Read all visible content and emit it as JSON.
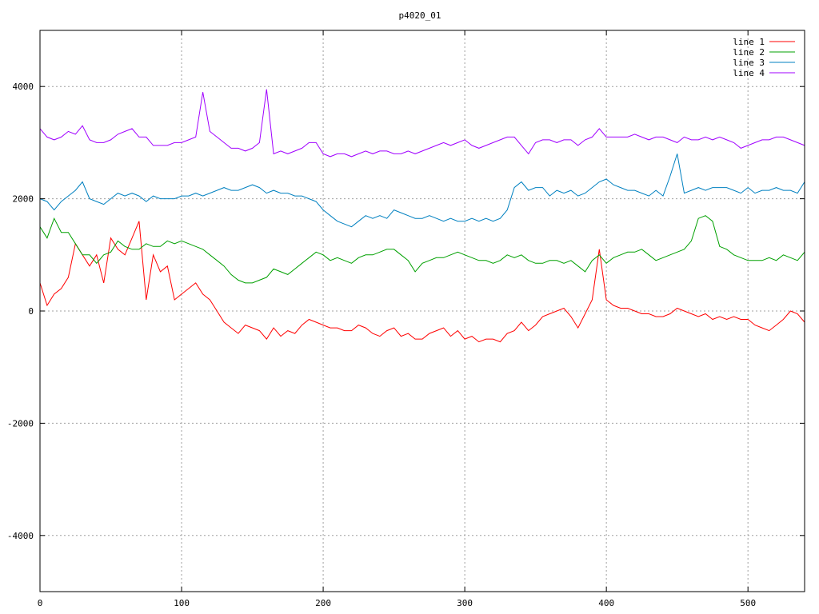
{
  "chart_data": {
    "type": "line",
    "title": "p4020_01",
    "xlabel": "",
    "ylabel": "",
    "xlim": [
      0,
      540
    ],
    "ylim": [
      -5000,
      5000
    ],
    "grid": true,
    "legend_position": "top-right",
    "x_ticks": [
      0,
      100,
      200,
      300,
      400,
      500
    ],
    "y_ticks": [
      -4000,
      -2000,
      0,
      2000,
      4000
    ],
    "x_tick_labels": [
      "0",
      "100",
      "200",
      "300",
      "400",
      "500"
    ],
    "y_tick_labels": [
      "-4000",
      "-2000",
      "0",
      "2000",
      "4000"
    ],
    "x": [
      0,
      5,
      10,
      15,
      20,
      25,
      30,
      35,
      40,
      45,
      50,
      55,
      60,
      65,
      70,
      75,
      80,
      85,
      90,
      95,
      100,
      105,
      110,
      115,
      120,
      125,
      130,
      135,
      140,
      145,
      150,
      155,
      160,
      165,
      170,
      175,
      180,
      185,
      190,
      195,
      200,
      205,
      210,
      215,
      220,
      225,
      230,
      235,
      240,
      245,
      250,
      255,
      260,
      265,
      270,
      275,
      280,
      285,
      290,
      295,
      300,
      305,
      310,
      315,
      320,
      325,
      330,
      335,
      340,
      345,
      350,
      355,
      360,
      365,
      370,
      375,
      380,
      385,
      390,
      395,
      400,
      405,
      410,
      415,
      420,
      425,
      430,
      435,
      440,
      445,
      450,
      455,
      460,
      465,
      470,
      475,
      480,
      485,
      490,
      495,
      500,
      505,
      510,
      515,
      520,
      525,
      530,
      535,
      540
    ],
    "series": [
      {
        "name": "line 1",
        "color": "#ff0000",
        "values": [
          500,
          100,
          300,
          400,
          600,
          1200,
          1000,
          800,
          1000,
          500,
          1300,
          1100,
          1000,
          1300,
          1600,
          200,
          1000,
          700,
          800,
          200,
          300,
          400,
          500,
          300,
          200,
          0,
          -200,
          -300,
          -400,
          -250,
          -300,
          -350,
          -500,
          -300,
          -450,
          -350,
          -400,
          -250,
          -150,
          -200,
          -250,
          -300,
          -300,
          -350,
          -350,
          -250,
          -300,
          -400,
          -450,
          -350,
          -300,
          -450,
          -400,
          -500,
          -500,
          -400,
          -350,
          -300,
          -450,
          -350,
          -500,
          -450,
          -550,
          -500,
          -500,
          -550,
          -400,
          -350,
          -200,
          -350,
          -250,
          -100,
          -50,
          0,
          50,
          -100,
          -300,
          -50,
          200,
          1100,
          200,
          100,
          50,
          50,
          0,
          -50,
          -50,
          -100,
          -100,
          -50,
          50,
          0,
          -50,
          -100,
          -50,
          -150,
          -100,
          -150,
          -100,
          -150,
          -150,
          -250,
          -300,
          -350,
          -250,
          -150,
          0,
          -50,
          -200
        ],
        "labels": []
      },
      {
        "name": "line 2",
        "color": "#00a000",
        "values": [
          1500,
          1300,
          1650,
          1400,
          1400,
          1200,
          1000,
          1000,
          850,
          1000,
          1050,
          1250,
          1150,
          1100,
          1100,
          1200,
          1150,
          1150,
          1250,
          1200,
          1250,
          1200,
          1150,
          1100,
          1000,
          900,
          800,
          650,
          550,
          500,
          500,
          550,
          600,
          750,
          700,
          650,
          750,
          850,
          950,
          1050,
          1000,
          900,
          950,
          900,
          850,
          950,
          1000,
          1000,
          1050,
          1100,
          1100,
          1000,
          900,
          700,
          850,
          900,
          950,
          950,
          1000,
          1050,
          1000,
          950,
          900,
          900,
          850,
          900,
          1000,
          950,
          1000,
          900,
          850,
          850,
          900,
          900,
          850,
          900,
          800,
          700,
          900,
          1000,
          850,
          950,
          1000,
          1050,
          1050,
          1100,
          1000,
          900,
          950,
          1000,
          1050,
          1100,
          1250,
          1650,
          1700,
          1600,
          1150,
          1100,
          1000,
          950,
          900,
          900,
          900,
          950,
          900,
          1000,
          950,
          900,
          1050
        ],
        "labels": []
      },
      {
        "name": "line 3",
        "color": "#0080c0",
        "values": [
          2000,
          1950,
          1800,
          1950,
          2050,
          2150,
          2300,
          2000,
          1950,
          1900,
          2000,
          2100,
          2050,
          2100,
          2050,
          1950,
          2050,
          2000,
          2000,
          2000,
          2050,
          2050,
          2100,
          2050,
          2100,
          2150,
          2200,
          2150,
          2150,
          2200,
          2250,
          2200,
          2100,
          2150,
          2100,
          2100,
          2050,
          2050,
          2000,
          1950,
          1800,
          1700,
          1600,
          1550,
          1500,
          1600,
          1700,
          1650,
          1700,
          1650,
          1800,
          1750,
          1700,
          1650,
          1650,
          1700,
          1650,
          1600,
          1650,
          1600,
          1600,
          1650,
          1600,
          1650,
          1600,
          1650,
          1800,
          2200,
          2300,
          2150,
          2200,
          2200,
          2050,
          2150,
          2100,
          2150,
          2050,
          2100,
          2200,
          2300,
          2350,
          2250,
          2200,
          2150,
          2150,
          2100,
          2050,
          2150,
          2050,
          2400,
          2800,
          2100,
          2150,
          2200,
          2150,
          2200,
          2200,
          2200,
          2150,
          2100,
          2200,
          2100,
          2150,
          2150,
          2200,
          2150,
          2150,
          2100,
          2300
        ],
        "labels": []
      },
      {
        "name": "line 4",
        "color": "#a000ff",
        "values": [
          3250,
          3100,
          3050,
          3100,
          3200,
          3150,
          3300,
          3050,
          3000,
          3000,
          3050,
          3150,
          3200,
          3250,
          3100,
          3100,
          2950,
          2950,
          2950,
          3000,
          3000,
          3050,
          3100,
          3900,
          3200,
          3100,
          3000,
          2900,
          2900,
          2850,
          2900,
          3000,
          3950,
          2800,
          2850,
          2800,
          2850,
          2900,
          3000,
          3000,
          2800,
          2750,
          2800,
          2800,
          2750,
          2800,
          2850,
          2800,
          2850,
          2850,
          2800,
          2800,
          2850,
          2800,
          2850,
          2900,
          2950,
          3000,
          2950,
          3000,
          3050,
          2950,
          2900,
          2950,
          3000,
          3050,
          3100,
          3100,
          2950,
          2800,
          3000,
          3050,
          3050,
          3000,
          3050,
          3050,
          2950,
          3050,
          3100,
          3250,
          3100,
          3100,
          3100,
          3100,
          3150,
          3100,
          3050,
          3100,
          3100,
          3050,
          3000,
          3100,
          3050,
          3050,
          3100,
          3050,
          3100,
          3050,
          3000,
          2900,
          2950,
          3000,
          3050,
          3050,
          3100,
          3100,
          3050,
          3000,
          2950
        ],
        "labels": []
      }
    ]
  }
}
